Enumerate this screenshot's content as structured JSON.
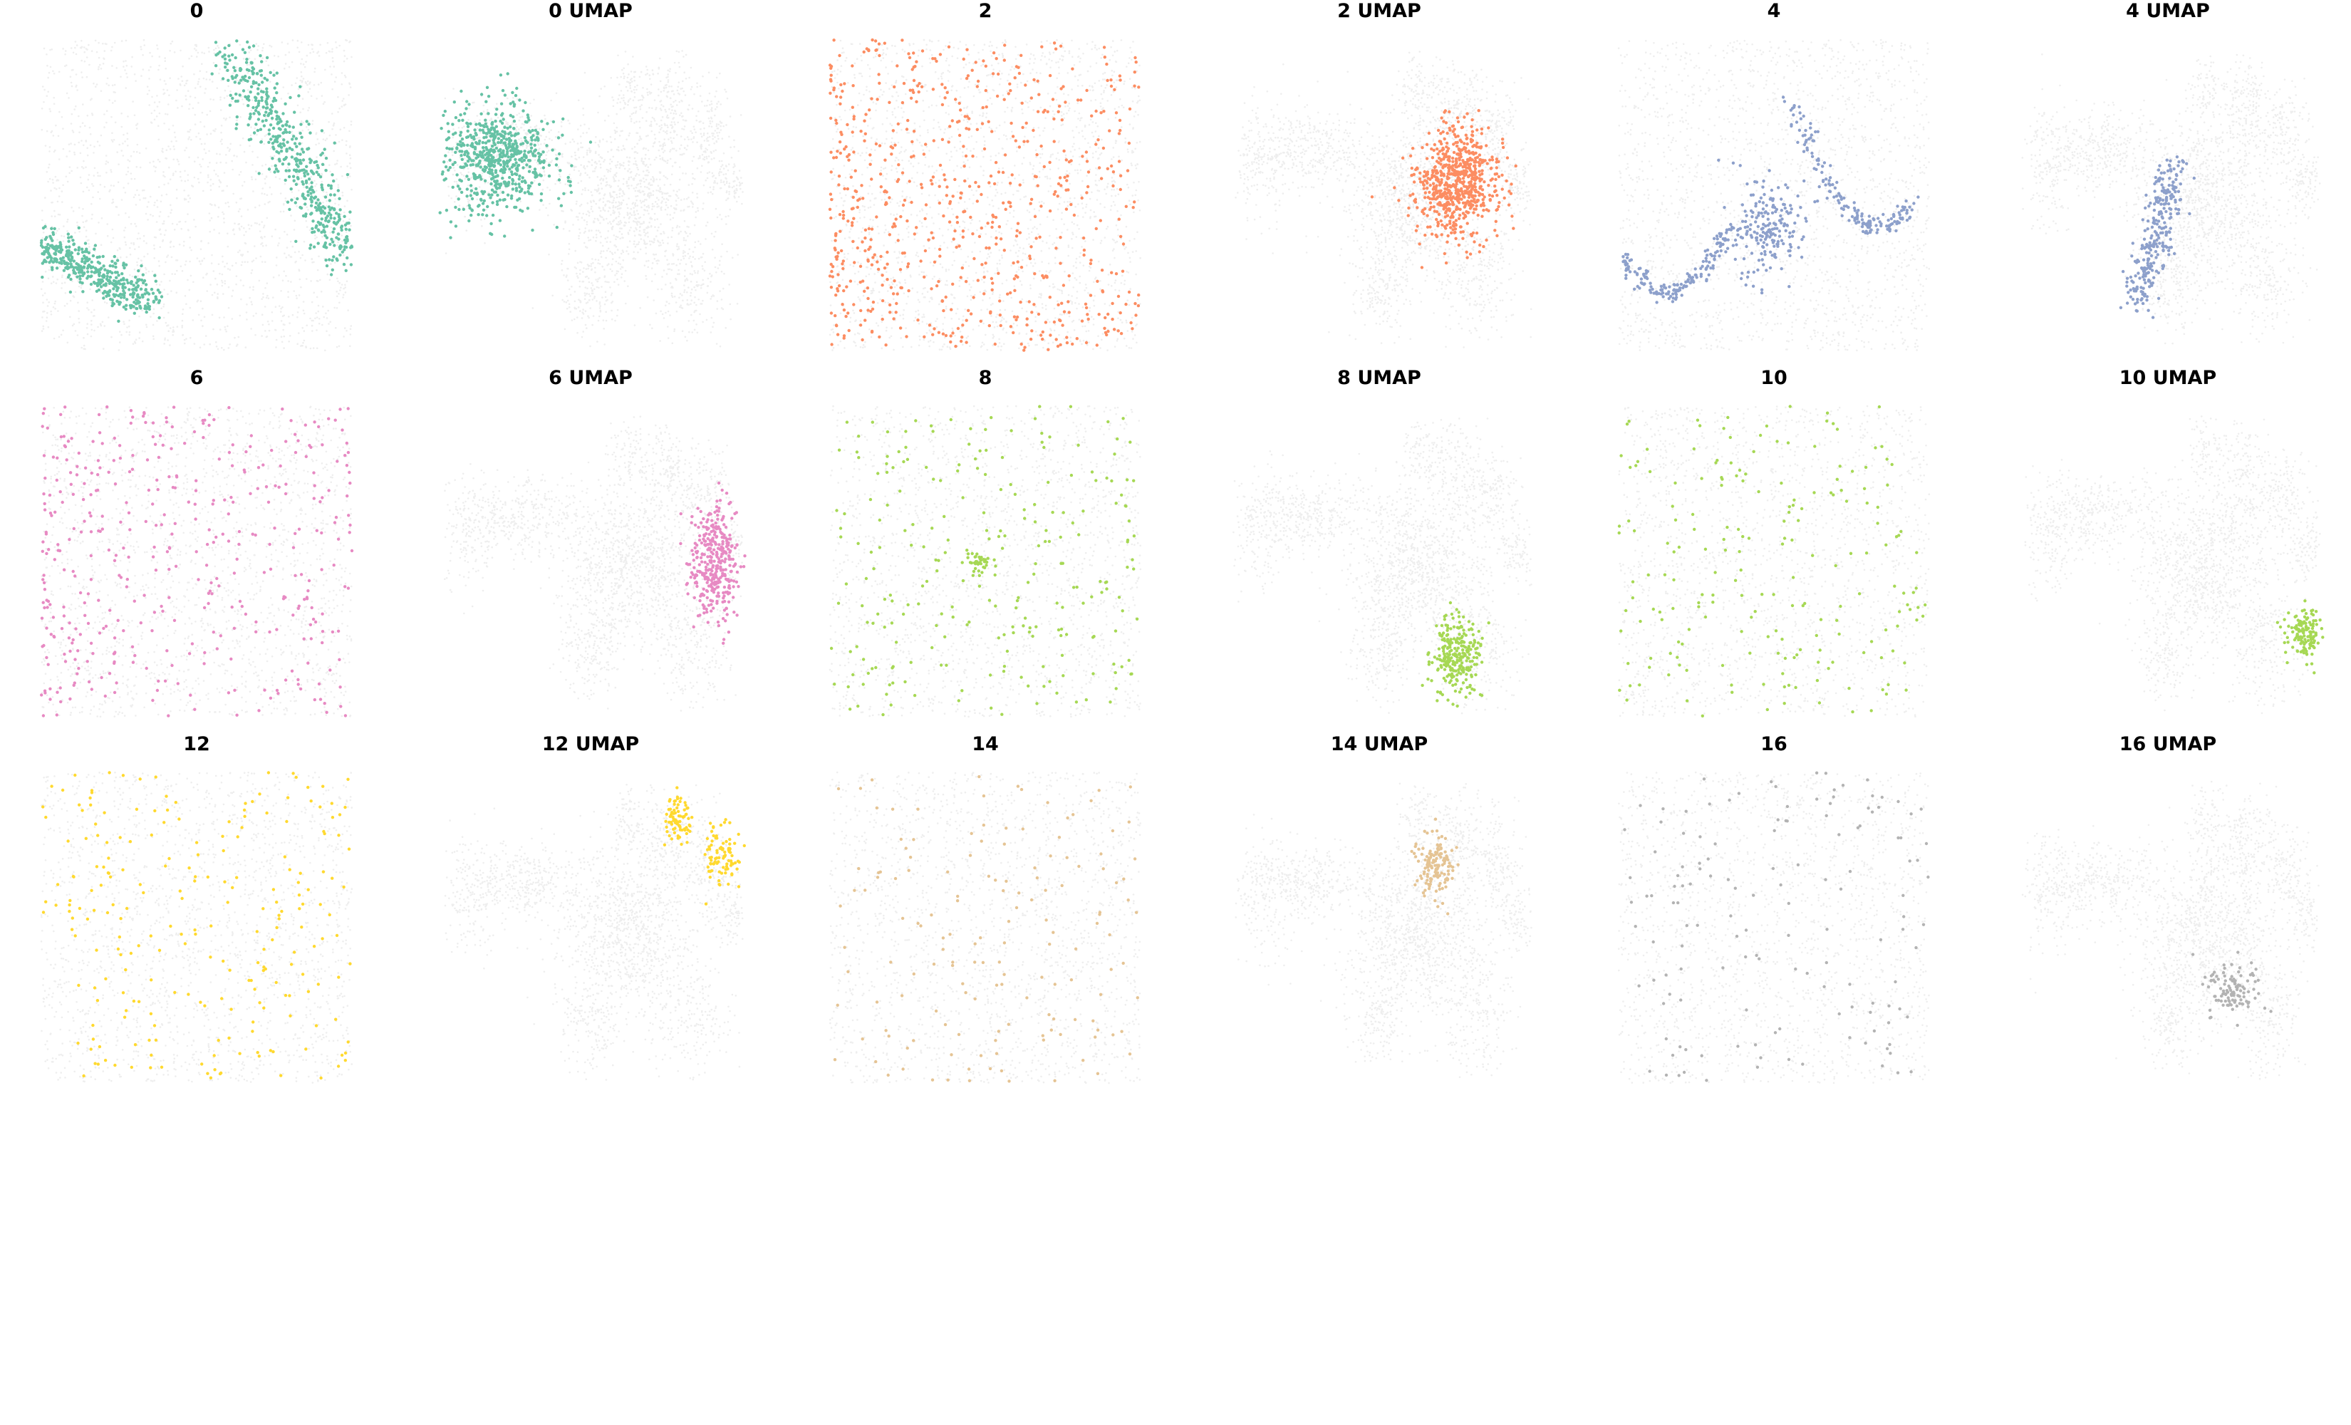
{
  "figure": {
    "background": "#ffffff",
    "rows": 3,
    "columns": 6,
    "background_cell_color": "#eeeeee",
    "background_style": "light grey points show all cells; highlighted cluster drawn in its color"
  },
  "chart_data": [
    {
      "type": "scatter",
      "title": "0",
      "view": "spatial",
      "cluster": "0",
      "color": "#66c2a5",
      "pattern": "two winding bands: upper-right region and lower-left region"
    },
    {
      "type": "scatter",
      "title": "0 UMAP",
      "view": "umap",
      "cluster": "0",
      "color": "#66c2a5",
      "pattern": "dense blob at far left arm of embedding"
    },
    {
      "type": "scatter",
      "title": "2",
      "view": "spatial",
      "cluster": "2",
      "color": "#fc8d62",
      "pattern": "scattered across whole tissue, denser at left"
    },
    {
      "type": "scatter",
      "title": "2 UMAP",
      "view": "umap",
      "cluster": "2",
      "color": "#fc8d62",
      "pattern": "dense blob at center of embedding"
    },
    {
      "type": "scatter",
      "title": "4",
      "view": "spatial",
      "cluster": "4",
      "color": "#8da0cb",
      "pattern": "thin winding tracts and an oval patch at center"
    },
    {
      "type": "scatter",
      "title": "4 UMAP",
      "view": "umap",
      "cluster": "4",
      "color": "#8da0cb",
      "pattern": "arc extending downward from upper-left center"
    },
    {
      "type": "scatter",
      "title": "6",
      "view": "spatial",
      "cluster": "6",
      "color": "#e78ac3",
      "pattern": "scattered, denser at left half"
    },
    {
      "type": "scatter",
      "title": "6 UMAP",
      "view": "umap",
      "cluster": "6",
      "color": "#e78ac3",
      "pattern": "right arm of embedding"
    },
    {
      "type": "scatter",
      "title": "8",
      "view": "spatial",
      "cluster": "8",
      "color": "#a6d854",
      "pattern": "sparse scatter with small cluster at center"
    },
    {
      "type": "scatter",
      "title": "8 UMAP",
      "view": "umap",
      "cluster": "8",
      "color": "#a6d854",
      "pattern": "lower-center lobe"
    },
    {
      "type": "scatter",
      "title": "10",
      "view": "spatial",
      "cluster": "10",
      "color": "#a6d854",
      "pattern": "sparse uniform scatter"
    },
    {
      "type": "scatter",
      "title": "10 UMAP",
      "view": "umap",
      "cluster": "10",
      "color": "#a6d854",
      "pattern": "lower-right lobe"
    },
    {
      "type": "scatter",
      "title": "12",
      "view": "spatial",
      "cluster": "12",
      "color": "#ffd92f",
      "pattern": "sparse uniform scatter"
    },
    {
      "type": "scatter",
      "title": "12 UMAP",
      "view": "umap",
      "cluster": "12",
      "color": "#ffd92f",
      "pattern": "two upper-right arms"
    },
    {
      "type": "scatter",
      "title": "14",
      "view": "spatial",
      "cluster": "14",
      "color": "#e5c494",
      "pattern": "very sparse uniform scatter"
    },
    {
      "type": "scatter",
      "title": "14 UMAP",
      "view": "umap",
      "cluster": "14",
      "color": "#e5c494",
      "pattern": "upper-center arm"
    },
    {
      "type": "scatter",
      "title": "16",
      "view": "spatial",
      "cluster": "16",
      "color": "#b3b3b3",
      "pattern": "very sparse uniform scatter"
    },
    {
      "type": "scatter",
      "title": "16 UMAP",
      "view": "umap",
      "cluster": "16",
      "color": "#b3b3b3",
      "pattern": "lower-center arm"
    }
  ]
}
